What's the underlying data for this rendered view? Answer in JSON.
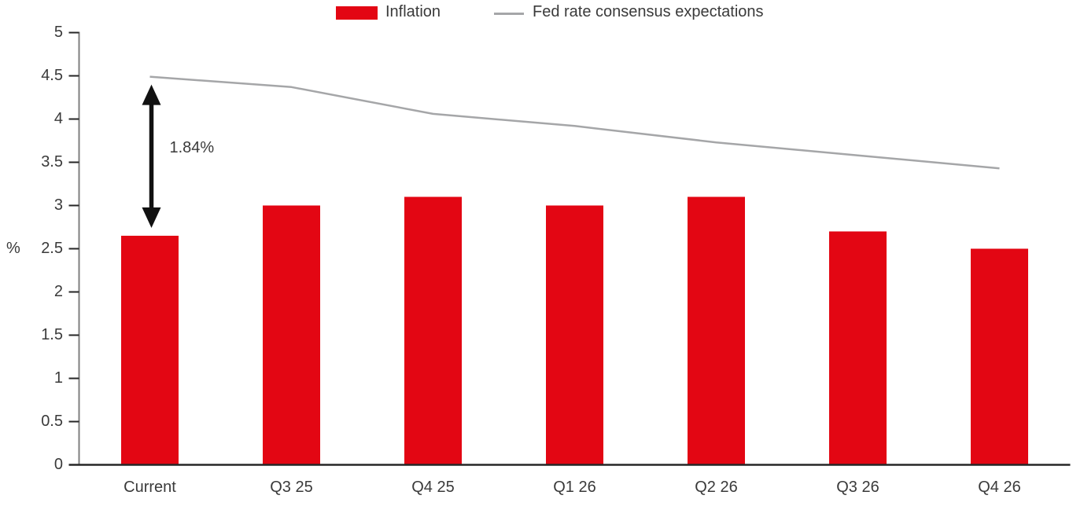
{
  "chart_data": {
    "type": "bar",
    "categories": [
      "Current",
      "Q3 25",
      "Q4 25",
      "Q1 26",
      "Q2 26",
      "Q3 26",
      "Q4 26"
    ],
    "series": [
      {
        "name": "Inflation",
        "type": "bar",
        "color": "#e30613",
        "values": [
          2.65,
          3.0,
          3.1,
          3.0,
          3.1,
          2.7,
          2.5
        ]
      },
      {
        "name": "Fed rate consensus expectations",
        "type": "line",
        "color": "#a5a6a8",
        "values": [
          4.49,
          4.37,
          4.06,
          3.92,
          3.73,
          3.58,
          3.43
        ]
      }
    ],
    "title": "",
    "xlabel": "",
    "ylabel": "%",
    "ylim": [
      0,
      5
    ],
    "ytick_step": 0.5,
    "grid": false,
    "legend_position": "top",
    "annotation": {
      "text": "1.84%",
      "category_index": 0,
      "from_series": 0,
      "to_series": 1
    },
    "colors": {
      "axis_line": "#7f7f7f",
      "tick_and_baseline": "#262626",
      "arrow": "#111111",
      "text": "#3a3a3a"
    }
  }
}
